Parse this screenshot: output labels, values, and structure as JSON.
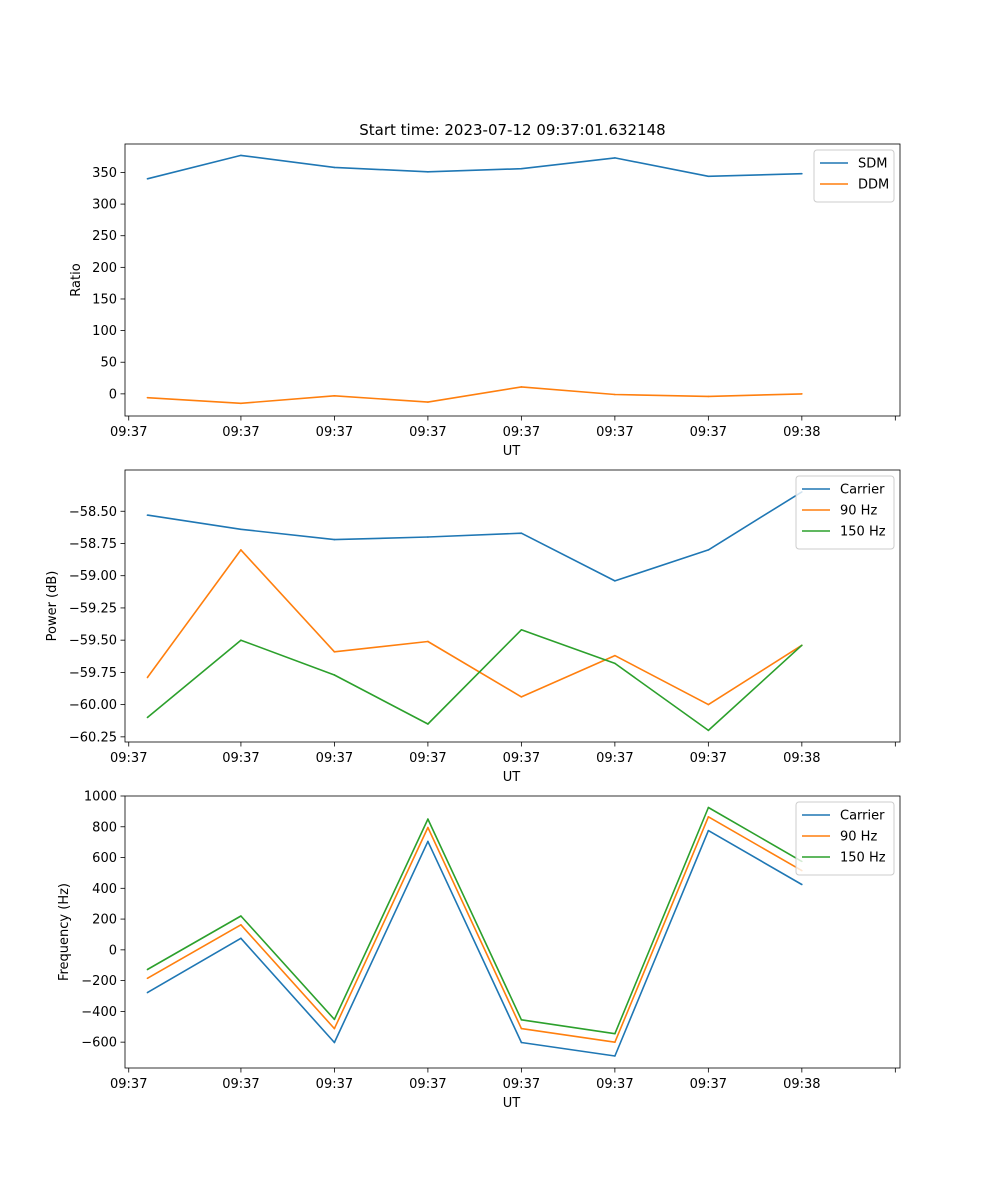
{
  "figure": {
    "title": "Start time: 2023-07-12 09:37:01.632148"
  },
  "chart_data": [
    {
      "type": "line",
      "title": "Start time: 2023-07-12 09:37:01.632148",
      "xlabel": "UT",
      "ylabel": "Ratio",
      "x_tick_labels": [
        "09:37",
        "09:37",
        "09:37",
        "09:37",
        "09:37",
        "09:37",
        "09:37"
      ],
      "x_last_tick_label": "09:38",
      "x": [
        1,
        2,
        3,
        4,
        5,
        6,
        7,
        8
      ],
      "xlim": [
        0.76,
        9.05
      ],
      "ylim": [
        -35,
        395
      ],
      "y_ticks": [
        0,
        50,
        100,
        150,
        200,
        250,
        300,
        350
      ],
      "y_tick_labels": [
        "0",
        "50",
        "100",
        "150",
        "200",
        "250",
        "300",
        "350"
      ],
      "legend": "top-right",
      "series": [
        {
          "name": "SDM",
          "color": "#1f77b4",
          "values": [
            340,
            377,
            358,
            351,
            356,
            373,
            344,
            348
          ]
        },
        {
          "name": "DDM",
          "color": "#ff7f0e",
          "values": [
            -6,
            -15,
            -3,
            -13,
            11,
            -1,
            -4,
            0
          ]
        }
      ]
    },
    {
      "type": "line",
      "title": "",
      "xlabel": "UT",
      "ylabel": "Power (dB)",
      "x_tick_labels": [
        "09:37",
        "09:37",
        "09:37",
        "09:37",
        "09:37",
        "09:37",
        "09:37"
      ],
      "x_last_tick_label": "09:38",
      "x": [
        1,
        2,
        3,
        4,
        5,
        6,
        7,
        8
      ],
      "xlim": [
        0.76,
        9.05
      ],
      "ylim": [
        -60.29,
        -58.18
      ],
      "y_ticks": [
        -60.25,
        -60.0,
        -59.75,
        -59.5,
        -59.25,
        -59.0,
        -58.75,
        -58.5
      ],
      "y_tick_labels": [
        "−60.25",
        "−60.00",
        "−59.75",
        "−59.50",
        "−59.25",
        "−59.00",
        "−58.75",
        "−58.50"
      ],
      "legend": "top-right",
      "series": [
        {
          "name": "Carrier",
          "color": "#1f77b4",
          "values": [
            -58.53,
            -58.64,
            -58.72,
            -58.7,
            -58.67,
            -59.04,
            -58.8,
            -58.35
          ]
        },
        {
          "name": "90 Hz",
          "color": "#ff7f0e",
          "values": [
            -59.79,
            -58.8,
            -59.59,
            -59.51,
            -59.94,
            -59.62,
            -60.0,
            -59.54
          ]
        },
        {
          "name": "150 Hz",
          "color": "#2ca02c",
          "values": [
            -60.1,
            -59.5,
            -59.77,
            -60.15,
            -59.42,
            -59.68,
            -60.2,
            -59.54
          ]
        }
      ]
    },
    {
      "type": "line",
      "title": "",
      "xlabel": "UT",
      "ylabel": "Frequency (Hz)",
      "x_tick_labels": [
        "09:37",
        "09:37",
        "09:37",
        "09:37",
        "09:37",
        "09:37",
        "09:37"
      ],
      "x_last_tick_label": "09:38",
      "x": [
        1,
        2,
        3,
        4,
        5,
        6,
        7,
        8
      ],
      "xlim": [
        0.76,
        9.05
      ],
      "ylim": [
        -768,
        1000
      ],
      "y_ticks": [
        -600,
        -400,
        -200,
        0,
        200,
        400,
        600,
        800,
        1000
      ],
      "y_tick_labels": [
        "−600",
        "−400",
        "−200",
        "0",
        "200",
        "400",
        "600",
        "800",
        "1000"
      ],
      "legend": "top-right",
      "series": [
        {
          "name": "Carrier",
          "color": "#1f77b4",
          "values": [
            -278,
            75,
            -602,
            705,
            -602,
            -690,
            775,
            425
          ]
        },
        {
          "name": "90 Hz",
          "color": "#ff7f0e",
          "values": [
            -185,
            163,
            -512,
            795,
            -512,
            -600,
            865,
            515
          ]
        },
        {
          "name": "150 Hz",
          "color": "#2ca02c",
          "values": [
            -128,
            220,
            -452,
            850,
            -455,
            -545,
            925,
            575
          ]
        }
      ]
    }
  ]
}
